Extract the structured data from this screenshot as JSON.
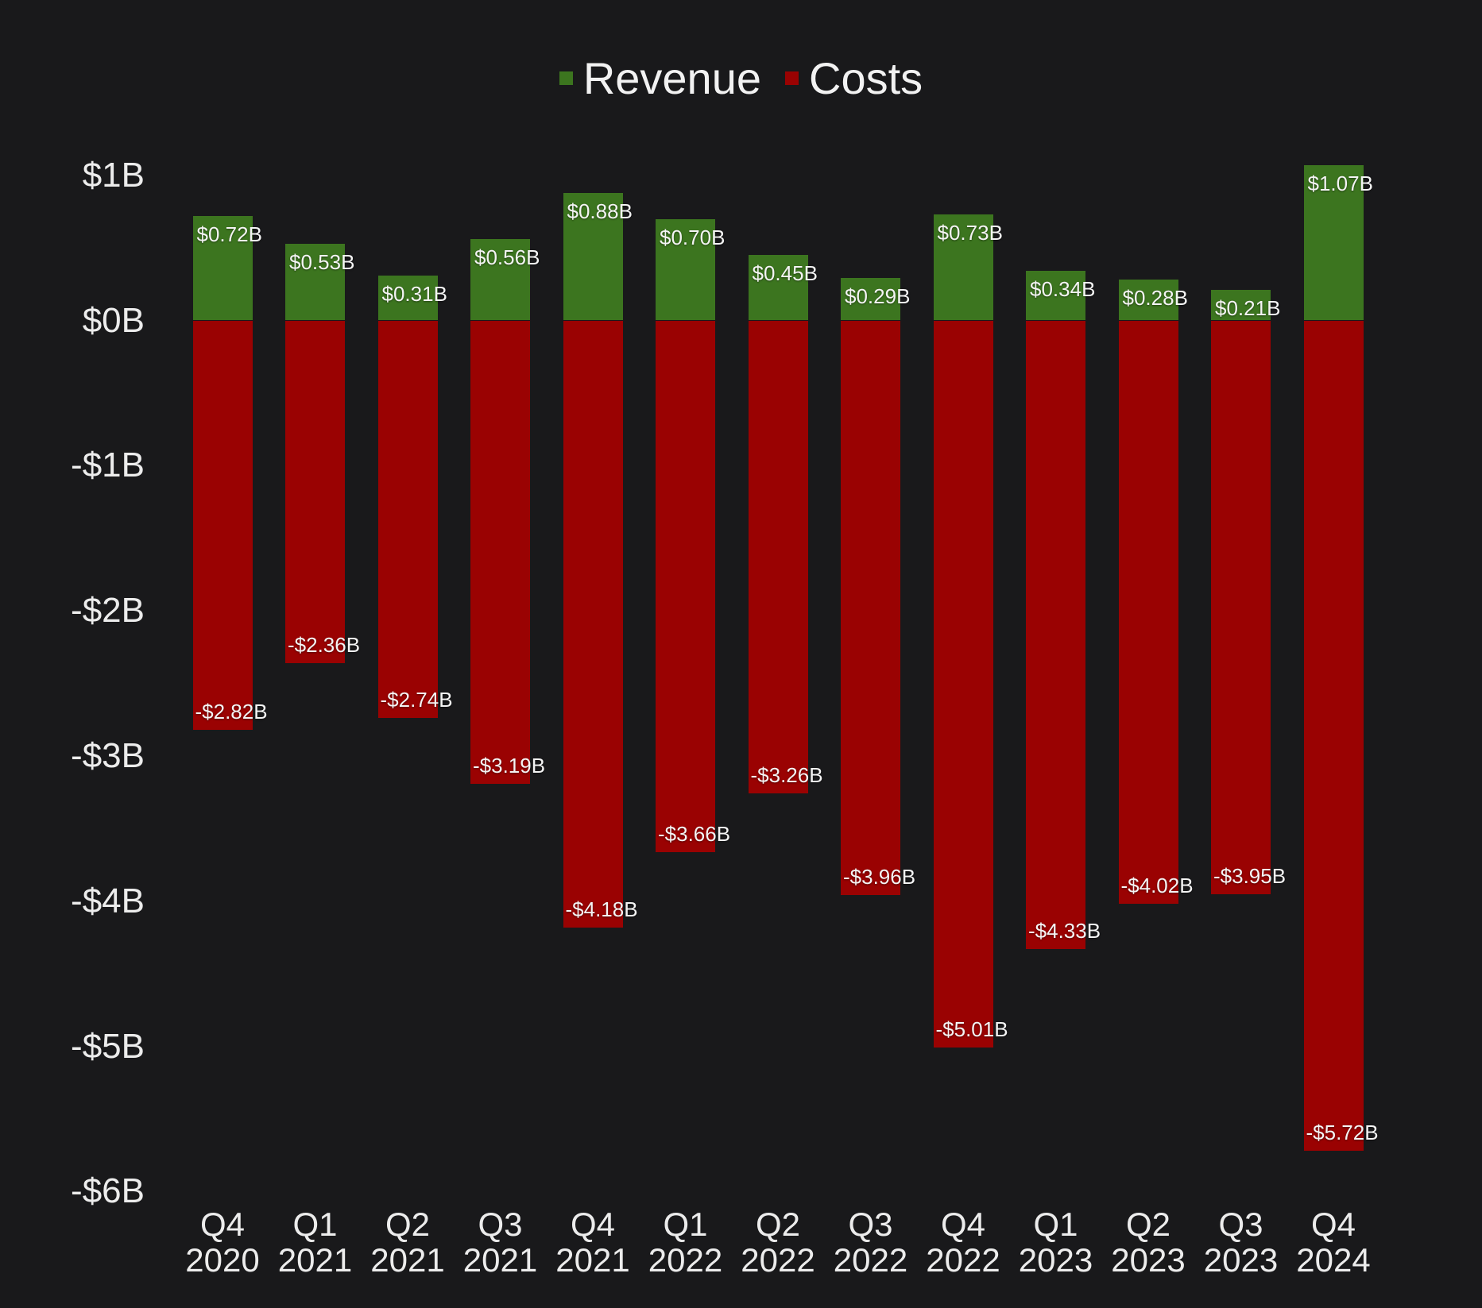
{
  "colors": {
    "background": "#19191b",
    "revenue": "#3C751F",
    "costs": "#9A0202",
    "tick_text": "#ECECEC",
    "bar_label_text": "#F4F4F4",
    "legend_text": "#F2F2F2"
  },
  "chart_data": {
    "type": "bar",
    "title": "",
    "subtitle": "",
    "xlabel": "",
    "ylabel": "",
    "grid": false,
    "legend_position": "top-center",
    "legend": [
      {
        "label": "Revenue",
        "color": "#3C751F"
      },
      {
        "label": "Costs",
        "color": "#9A0202"
      }
    ],
    "categories": [
      "Q4 2020",
      "Q1 2021",
      "Q2 2021",
      "Q3 2021",
      "Q4 2021",
      "Q1 2022",
      "Q2 2022",
      "Q3 2022",
      "Q4 2022",
      "Q1 2023",
      "Q2 2023",
      "Q3 2023",
      "Q4 2024"
    ],
    "series": [
      {
        "name": "Revenue",
        "color": "#3C751F",
        "values": [
          0.72,
          0.53,
          0.31,
          0.56,
          0.88,
          0.7,
          0.45,
          0.29,
          0.73,
          0.34,
          0.28,
          0.21,
          1.07
        ],
        "labels": [
          "$0.72B",
          "$0.53B",
          "$0.31B",
          "$0.56B",
          "$0.88B",
          "$0.70B",
          "$0.45B",
          "$0.29B",
          "$0.73B",
          "$0.34B",
          "$0.28B",
          "$0.21B",
          "$1.07B"
        ]
      },
      {
        "name": "Costs",
        "color": "#9A0202",
        "values": [
          -2.82,
          -2.36,
          -2.74,
          -3.19,
          -4.18,
          -3.66,
          -3.26,
          -3.96,
          -5.01,
          -4.33,
          -4.02,
          -3.95,
          -5.72
        ],
        "labels": [
          "-$2.82B",
          "-$2.36B",
          "-$2.74B",
          "-$3.19B",
          "-$4.18B",
          "-$3.66B",
          "-$3.26B",
          "-$3.96B",
          "-$5.01B",
          "-$4.33B",
          "-$4.02B",
          "-$3.95B",
          "-$5.72B"
        ]
      }
    ],
    "yticks": [
      {
        "label": "$1B",
        "value": 1
      },
      {
        "label": "$0B",
        "value": 0
      },
      {
        "label": "-$1B",
        "value": -1
      },
      {
        "label": "-$2B",
        "value": -2
      },
      {
        "label": "-$3B",
        "value": -3
      },
      {
        "label": "-$4B",
        "value": -4
      },
      {
        "label": "-$5B",
        "value": -5
      },
      {
        "label": "-$6B",
        "value": -6
      }
    ],
    "ylim": [
      -6.4,
      1.35
    ]
  }
}
